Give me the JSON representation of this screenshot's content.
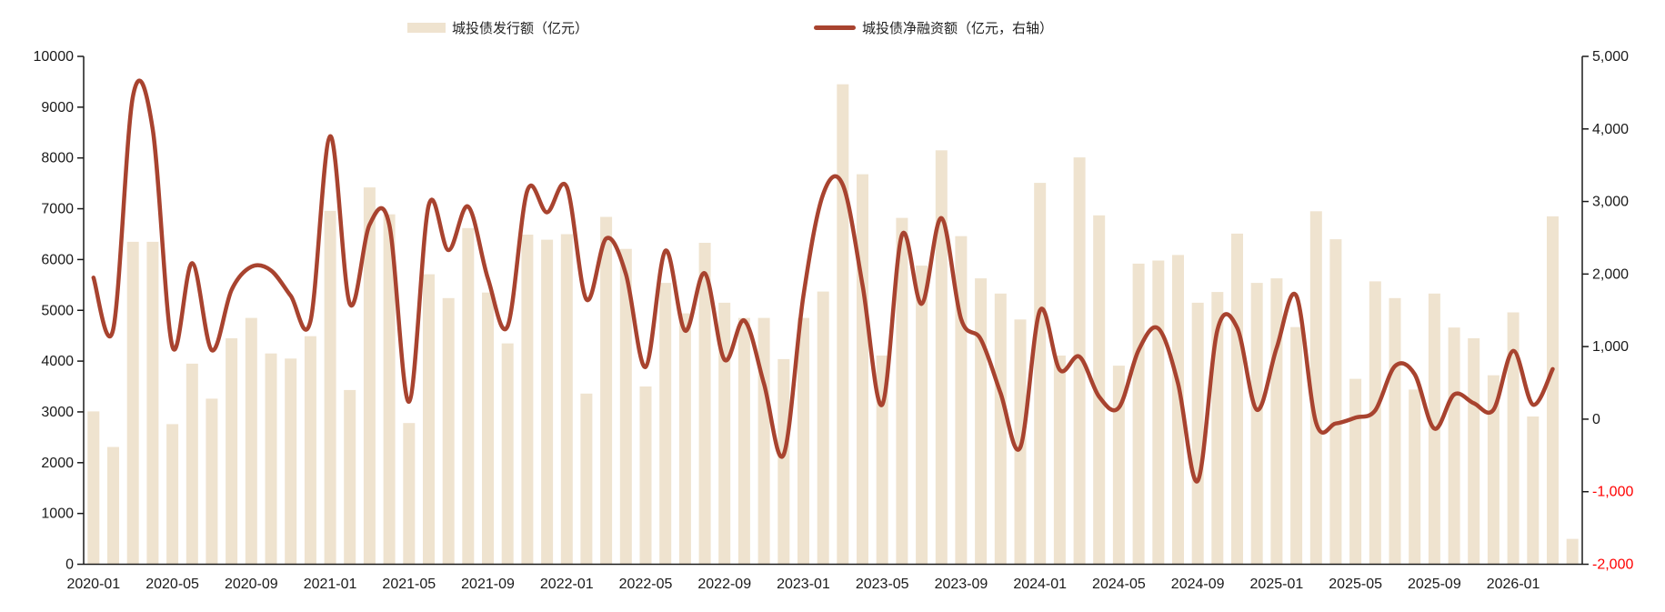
{
  "chart_data": {
    "type": "combo-bar-line",
    "categories": [
      "2020-01",
      "2020-02",
      "2020-03",
      "2020-04",
      "2020-05",
      "2020-06",
      "2020-07",
      "2020-08",
      "2020-09",
      "2020-10",
      "2020-11",
      "2020-12",
      "2021-01",
      "2021-02",
      "2021-03",
      "2021-04",
      "2021-05",
      "2021-06",
      "2021-07",
      "2021-08",
      "2021-09",
      "2021-10",
      "2021-11",
      "2021-12",
      "2022-01",
      "2022-02",
      "2022-03",
      "2022-04",
      "2022-05",
      "2022-06",
      "2022-07",
      "2022-08",
      "2022-09",
      "2022-10",
      "2022-11",
      "2022-12",
      "2023-01",
      "2023-02",
      "2023-03",
      "2023-04",
      "2023-05",
      "2023-06",
      "2023-07",
      "2023-08",
      "2023-09",
      "2023-10",
      "2023-11",
      "2023-12",
      "2024-01",
      "2024-02",
      "2024-03",
      "2024-04",
      "2024-05",
      "2024-06",
      "2024-07",
      "2024-08",
      "2024-09",
      "2024-10",
      "2024-11",
      "2024-12",
      "2025-01",
      "2025-02",
      "2025-03",
      "2025-04",
      "2025-05",
      "2025-06",
      "2025-07",
      "2025-08",
      "2025-09",
      "2025-10",
      "2025-11",
      "2025-12",
      "2026-01",
      "2026-02",
      "2026-03",
      "2026-04"
    ],
    "x_tick_labels": [
      "2020-01",
      "2020-05",
      "2020-09",
      "2021-01",
      "2021-05",
      "2021-09",
      "2022-01",
      "2022-05",
      "2022-09",
      "2023-01",
      "2023-05",
      "2023-09",
      "2024-01",
      "2024-05",
      "2024-09",
      "2025-01",
      "2025-05",
      "2025-09",
      "2026-01"
    ],
    "x_tick_every": 4,
    "series": [
      {
        "name": "城投债发行额（亿元）",
        "type": "bar",
        "axis": "left",
        "color": "#EFE3CF",
        "values": [
          3010,
          2310,
          6350,
          6350,
          2760,
          3950,
          3260,
          4450,
          4850,
          4150,
          4050,
          4490,
          6960,
          3430,
          7420,
          6890,
          2780,
          5710,
          5240,
          6620,
          5350,
          4350,
          6490,
          6390,
          6500,
          3360,
          6840,
          6210,
          3500,
          5540,
          4940,
          6330,
          5150,
          4850,
          4850,
          4040,
          4850,
          5370,
          9450,
          7680,
          4110,
          6820,
          5880,
          8150,
          6460,
          5630,
          5330,
          4820,
          7510,
          4110,
          8010,
          6870,
          3910,
          5920,
          5980,
          6090,
          5150,
          5360,
          6510,
          5540,
          5630,
          4670,
          6950,
          6400,
          3650,
          5570,
          5240,
          3440,
          5330,
          4660,
          4450,
          3720,
          4960,
          2910,
          6850,
          500
        ]
      },
      {
        "name": "城投债净融资额（亿元，右轴）",
        "type": "line",
        "axis": "right",
        "color": "#A8432F",
        "values": [
          1950,
          1240,
          4450,
          4000,
          1000,
          2150,
          950,
          1780,
          2100,
          2050,
          1700,
          1350,
          3900,
          1590,
          2680,
          2680,
          240,
          2950,
          2330,
          2930,
          1940,
          1280,
          3150,
          2850,
          3200,
          1650,
          2490,
          2000,
          720,
          2320,
          1220,
          2010,
          820,
          1360,
          490,
          -490,
          1700,
          3100,
          3230,
          1850,
          200,
          2540,
          1590,
          2770,
          1380,
          1100,
          360,
          -390,
          1500,
          680,
          860,
          310,
          160,
          950,
          1250,
          490,
          -850,
          1230,
          1260,
          130,
          980,
          1700,
          -50,
          -60,
          20,
          120,
          730,
          620,
          -130,
          340,
          220,
          130,
          940,
          200,
          690,
          null
        ]
      }
    ],
    "left_axis": {
      "min": 0,
      "max": 10000,
      "step": 1000,
      "tick_labels": [
        "0",
        "1000",
        "2000",
        "3000",
        "4000",
        "5000",
        "6000",
        "7000",
        "8000",
        "9000",
        "10000"
      ],
      "label_color": "#1a1a1a"
    },
    "right_axis": {
      "min": -2000,
      "max": 5000,
      "step": 1000,
      "tick_labels": [
        "-2,000",
        "-1,000",
        "0",
        "1,000",
        "2,000",
        "3,000",
        "4,000",
        "5,000"
      ],
      "label_color": "#1a1a1a",
      "negative_label_color": "#FF0000"
    },
    "grid": false,
    "legend_position": "top",
    "axis_line_color": "#1a1a1a"
  }
}
